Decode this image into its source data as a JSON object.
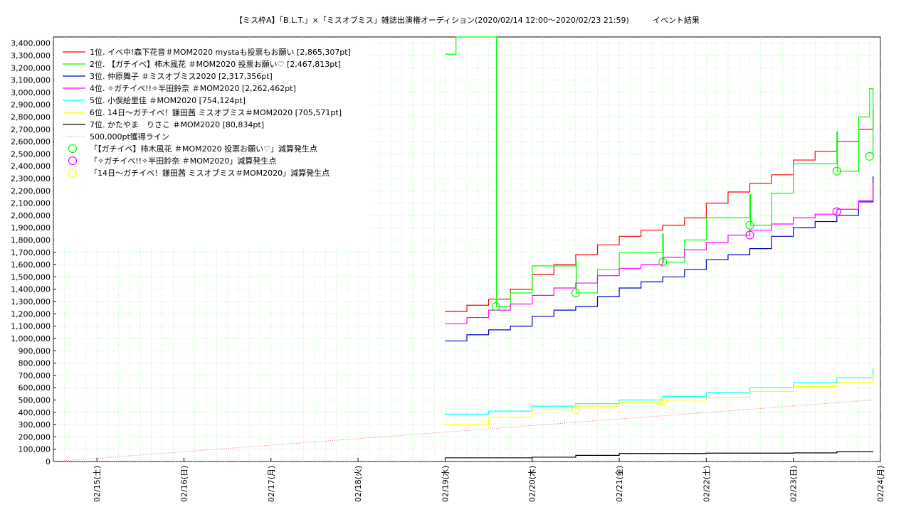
{
  "chart_data": {
    "type": "line",
    "title": "【ミス枠A】「B.L.T.」×「ミスオブミス」雑誌出演権オーディション(2020/02/14 12:00〜2020/02/23 21:59)　　　イベント結果",
    "xlabel": "",
    "ylabel": "",
    "x_ticks": [
      "02/15(土)",
      "02/16(日)",
      "02/17(月)",
      "02/18(火)",
      "02/19(水)",
      "02/20(木)",
      "02/21(金)",
      "02/22(土)",
      "02/23(日)",
      "02/24(月)"
    ],
    "y_ticks": [
      "0",
      "100,000",
      "200,000",
      "300,000",
      "400,000",
      "500,000",
      "600,000",
      "700,000",
      "800,000",
      "900,000",
      "1,000,000",
      "1,100,000",
      "1,200,000",
      "1,300,000",
      "1,400,000",
      "1,500,000",
      "1,600,000",
      "1,700,000",
      "1,800,000",
      "1,900,000",
      "2,000,000",
      "2,100,000",
      "2,200,000",
      "2,300,000",
      "2,400,000",
      "2,500,000",
      "2,600,000",
      "2,700,000",
      "2,800,000",
      "2,900,000",
      "3,000,000",
      "3,100,000",
      "3,200,000",
      "3,300,000",
      "3,400,000"
    ],
    "xlim": [
      "02/14 12:00",
      "02/24 00:00"
    ],
    "ylim": [
      0,
      3450000
    ],
    "grid": true,
    "legend_position": "top-left",
    "series": [
      {
        "name": "1位. イベ中!森下花音＃MOM2020 mystaも投票もお願い [2,865,307pt]",
        "color": "#ff0000",
        "x": [
          "02/19 00:00",
          "02/19 06:00",
          "02/19 12:00",
          "02/19 18:00",
          "02/20 00:00",
          "02/20 06:00",
          "02/20 12:00",
          "02/20 18:00",
          "02/21 00:00",
          "02/21 06:00",
          "02/21 12:00",
          "02/21 18:00",
          "02/22 00:00",
          "02/22 06:00",
          "02/22 12:00",
          "02/22 18:00",
          "02/23 00:00",
          "02/23 06:00",
          "02/23 12:00",
          "02/23 18:00",
          "02/23 21:59"
        ],
        "y": [
          1220000,
          1270000,
          1320000,
          1400000,
          1520000,
          1600000,
          1680000,
          1760000,
          1830000,
          1880000,
          1920000,
          1980000,
          2100000,
          2190000,
          2260000,
          2330000,
          2450000,
          2520000,
          2600000,
          2700000,
          2865307
        ]
      },
      {
        "name": "2位. 【ガチイベ】柿木風花 ＃MOM2020 投票お願い♡ [2,467,813pt]",
        "color": "#00ff00",
        "x": [
          "02/19 00:00",
          "02/19 03:00",
          "02/19 14:00",
          "02/19 14:10",
          "02/19 18:00",
          "02/20 00:00",
          "02/20 12:00",
          "02/20 12:10",
          "02/20 18:00",
          "02/21 00:00",
          "02/21 12:00",
          "02/21 12:10",
          "02/21 18:00",
          "02/22 00:00",
          "02/22 12:00",
          "02/22 12:10",
          "02/22 18:00",
          "02/23 00:00",
          "02/23 12:00",
          "02/23 12:10",
          "02/23 18:00",
          "02/23 21:00",
          "02/23 21:59"
        ],
        "y": [
          3310000,
          3450000,
          3450000,
          1260000,
          1370000,
          1590000,
          1640000,
          1370000,
          1560000,
          1700000,
          1850000,
          1620000,
          1800000,
          1980000,
          2170000,
          1920000,
          2180000,
          2420000,
          2680000,
          2360000,
          2800000,
          3030000,
          2467813
        ]
      },
      {
        "name": "3位. 仲原舞子 ＃ミスオブミス2020 [2,317,356pt]",
        "color": "#0000cc",
        "x": [
          "02/19 00:00",
          "02/19 06:00",
          "02/19 12:00",
          "02/19 18:00",
          "02/20 00:00",
          "02/20 06:00",
          "02/20 12:00",
          "02/20 18:00",
          "02/21 00:00",
          "02/21 06:00",
          "02/21 12:00",
          "02/21 18:00",
          "02/22 00:00",
          "02/22 06:00",
          "02/22 12:00",
          "02/22 18:00",
          "02/23 00:00",
          "02/23 06:00",
          "02/23 12:00",
          "02/23 18:00",
          "02/23 21:59"
        ],
        "y": [
          980000,
          1030000,
          1070000,
          1100000,
          1180000,
          1230000,
          1260000,
          1340000,
          1410000,
          1460000,
          1500000,
          1560000,
          1640000,
          1680000,
          1730000,
          1830000,
          1900000,
          1950000,
          2000000,
          2110000,
          2317356
        ]
      },
      {
        "name": "4位. ✧ガチイベ!!✧半田鈴奈 ＃MOM2020 [2,262,462pt]",
        "color": "#ff00ff",
        "x": [
          "02/19 00:00",
          "02/19 06:00",
          "02/19 12:00",
          "02/19 18:00",
          "02/20 00:00",
          "02/20 06:00",
          "02/20 12:00",
          "02/20 18:00",
          "02/21 00:00",
          "02/21 06:00",
          "02/21 12:00",
          "02/21 18:00",
          "02/22 00:00",
          "02/22 06:00",
          "02/22 12:00",
          "02/22 18:00",
          "02/23 00:00",
          "02/23 06:00",
          "02/23 12:00",
          "02/23 18:00",
          "02/23 21:59"
        ],
        "y": [
          1120000,
          1170000,
          1230000,
          1280000,
          1350000,
          1410000,
          1450000,
          1510000,
          1570000,
          1600000,
          1660000,
          1720000,
          1780000,
          1840000,
          1880000,
          1930000,
          1980000,
          2010000,
          2050000,
          2120000,
          2262462
        ]
      },
      {
        "name": "5位. 小俣絵里佳 ＃MOM2020 [754,124pt]",
        "color": "#00ffff",
        "x": [
          "02/19 00:00",
          "02/19 12:00",
          "02/20 00:00",
          "02/20 12:00",
          "02/21 00:00",
          "02/21 12:00",
          "02/22 00:00",
          "02/22 12:00",
          "02/23 00:00",
          "02/23 12:00",
          "02/23 21:59"
        ],
        "y": [
          385000,
          410000,
          450000,
          470000,
          500000,
          530000,
          560000,
          600000,
          640000,
          680000,
          754124
        ]
      },
      {
        "name": "6位. 14日〜ガチイベ！鎌田茜 ミスオブミス＃MOM2020 [705,571pt]",
        "color": "#ffff00",
        "x": [
          "02/19 00:00",
          "02/19 12:00",
          "02/20 00:00",
          "02/20 12:00",
          "02/21 00:00",
          "02/21 12:00",
          "02/22 00:00",
          "02/22 12:00",
          "02/23 00:00",
          "02/23 12:00",
          "02/23 21:59"
        ],
        "y": [
          300000,
          360000,
          420000,
          450000,
          480000,
          500000,
          520000,
          570000,
          610000,
          640000,
          705571
        ]
      },
      {
        "name": "7位. かたやま　りさこ ＃MOM2020 [80,834pt]",
        "color": "#000000",
        "x": [
          "02/19 00:00",
          "02/20 00:00",
          "02/20 12:00",
          "02/21 00:00",
          "02/22 00:00",
          "02/23 00:00",
          "02/23 12:00",
          "02/23 21:59"
        ],
        "y": [
          30000,
          35000,
          50000,
          65000,
          68000,
          70000,
          80000,
          80834
        ]
      },
      {
        "name": "500,000pt獲得ライン",
        "color": "#e06060",
        "dotted": true,
        "x": [
          "02/14 12:00",
          "02/23 21:59"
        ],
        "y": [
          0,
          500000
        ]
      }
    ],
    "markers": [
      {
        "name": "「【ガチイベ】柿木風花 ＃MOM2020 投票お願い♡」減算発生点",
        "color": "#00ff00",
        "x": [
          "02/19 14:00",
          "02/20 12:00",
          "02/21 12:00",
          "02/22 12:00",
          "02/23 12:00",
          "02/23 21:00"
        ],
        "y": [
          1260000,
          1370000,
          1620000,
          1920000,
          2360000,
          2480000
        ]
      },
      {
        "name": "「✧ガチイベ!!✧半田鈴奈 ＃MOM2020」減算発生点",
        "color": "#ff00ff",
        "x": [
          "02/22 12:00",
          "02/23 12:00"
        ],
        "y": [
          1840000,
          2030000
        ]
      },
      {
        "name": "「14日〜ガチイベ！鎌田茜 ミスオブミス＃MOM2020」減算発生点",
        "color": "#ffff00",
        "x": [
          "02/20 12:00",
          "02/21 12:00"
        ],
        "y": [
          420000,
          490000
        ]
      }
    ]
  }
}
